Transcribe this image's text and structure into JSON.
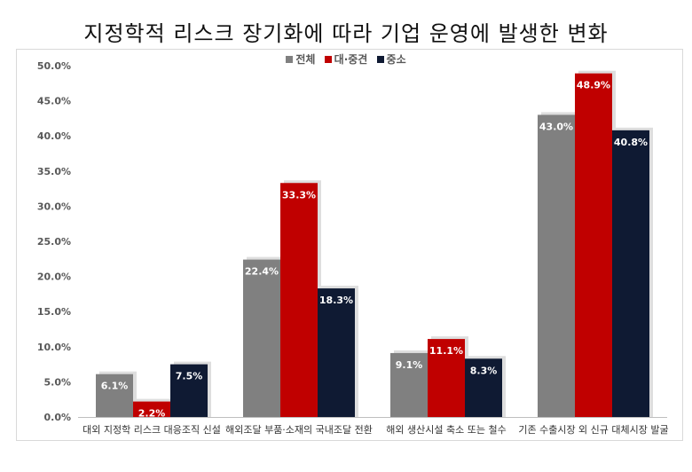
{
  "chart_data": {
    "type": "bar",
    "title": "지정학적 리스크 장기화에 따라 기업 운영에 발생한 변화",
    "categories": [
      "대외 지정학 리스크 대응조직 신설",
      "해외조달 부품·소재의 국내조달 전환",
      "해외 생산시설 축소 또는 철수",
      "기존 수출시장 외 신규 대체시장 발굴"
    ],
    "series": [
      {
        "name": "전체",
        "color": "#808080",
        "values": [
          6.1,
          22.4,
          9.1,
          43.0
        ],
        "labels": [
          "6.1%",
          "22.4%",
          "9.1%",
          "43.0%"
        ]
      },
      {
        "name": "대·중견",
        "color": "#c00000",
        "values": [
          2.2,
          33.3,
          11.1,
          48.9
        ],
        "labels": [
          "2.2%",
          "33.3%",
          "11.1%",
          "48.9%"
        ]
      },
      {
        "name": "중소",
        "color": "#0f1a33",
        "values": [
          7.5,
          18.3,
          8.3,
          40.8
        ],
        "labels": [
          "7.5%",
          "18.3%",
          "8.3%",
          "40.8%"
        ]
      }
    ],
    "ylim": [
      0,
      50
    ],
    "yticks": [
      "0.0%",
      "5.0%",
      "10.0%",
      "15.0%",
      "20.0%",
      "25.0%",
      "30.0%",
      "35.0%",
      "40.0%",
      "45.0%",
      "50.0%"
    ],
    "legend": "top-center",
    "grid": false
  }
}
